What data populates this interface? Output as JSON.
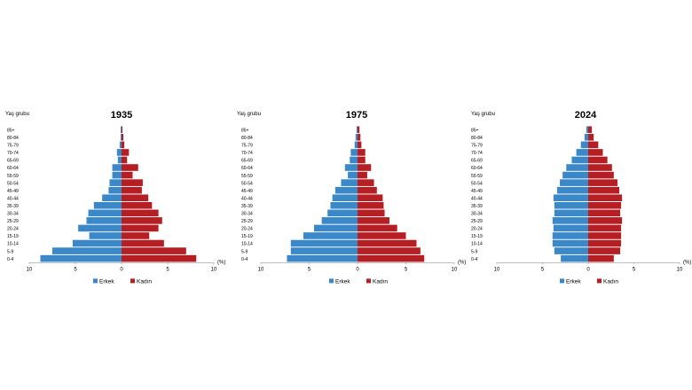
{
  "colors": {
    "male": "#3a88c8",
    "female": "#b51f24"
  },
  "chart_data": [
    {
      "type": "bar",
      "orientation": "horizontal",
      "subtype": "population-pyramid",
      "title": "1935",
      "ylabel": "Yaş grubu",
      "xlabel": "(%)",
      "xlim": [
        -10,
        10
      ],
      "xticks": [
        "10",
        "5",
        "0",
        "5",
        "10"
      ],
      "categories": [
        "0-4",
        "5-9",
        "10-14",
        "15-19",
        "20-24",
        "25-29",
        "30-34",
        "35-39",
        "40-44",
        "45-49",
        "50-54",
        "55-59",
        "60-64",
        "65-69",
        "70-74",
        "75-79",
        "80-84",
        "85+"
      ],
      "series": [
        {
          "name": "Erkek",
          "values": [
            8.8,
            7.5,
            5.3,
            3.5,
            4.7,
            3.8,
            3.6,
            3.0,
            2.1,
            1.4,
            1.3,
            1.0,
            1.0,
            0.4,
            0.5,
            0.2,
            0.1,
            0.1
          ]
        },
        {
          "name": "Kadın",
          "values": [
            8.1,
            7.0,
            4.6,
            3.0,
            4.0,
            4.4,
            4.0,
            3.3,
            2.9,
            2.2,
            2.3,
            1.2,
            1.8,
            0.6,
            0.8,
            0.3,
            0.2,
            0.1
          ]
        }
      ]
    },
    {
      "type": "bar",
      "orientation": "horizontal",
      "subtype": "population-pyramid",
      "title": "1975",
      "ylabel": "Yaş grubu",
      "xlabel": "(%)",
      "xlim": [
        -10,
        10
      ],
      "xticks": [
        "10",
        "5",
        "0",
        "5",
        "10"
      ],
      "categories": [
        "0-4",
        "5-9",
        "10-14",
        "15-19",
        "20-24",
        "25-29",
        "30-34",
        "35-39",
        "40-44",
        "45-49",
        "50-54",
        "55-59",
        "60-64",
        "65-69",
        "70-74",
        "75-79",
        "80-84",
        "85+"
      ],
      "series": [
        {
          "name": "Erkek",
          "values": [
            7.3,
            6.9,
            6.9,
            5.6,
            4.5,
            3.7,
            3.1,
            2.8,
            2.6,
            2.3,
            1.7,
            1.0,
            1.3,
            0.8,
            0.7,
            0.3,
            0.2,
            0.1
          ]
        },
        {
          "name": "Kadın",
          "values": [
            6.9,
            6.5,
            6.1,
            5.0,
            4.1,
            3.3,
            2.8,
            2.7,
            2.6,
            2.0,
            1.7,
            1.0,
            1.4,
            0.8,
            0.8,
            0.4,
            0.3,
            0.2
          ]
        }
      ]
    },
    {
      "type": "bar",
      "orientation": "horizontal",
      "subtype": "population-pyramid",
      "title": "2024",
      "ylabel": "Yaş grubu",
      "xlabel": "(%)",
      "xlim": [
        -10,
        10
      ],
      "xticks": [
        "10",
        "5",
        "0",
        "5",
        "10"
      ],
      "categories": [
        "0-4",
        "5-9",
        "10-14",
        "15-19",
        "20-24",
        "25-29",
        "30-34",
        "35-39",
        "40-44",
        "45-49",
        "50-54",
        "55-59",
        "60-64",
        "65-69",
        "70-74",
        "75-79",
        "80-84",
        "85+"
      ],
      "series": [
        {
          "name": "Erkek",
          "values": [
            3.0,
            3.7,
            3.9,
            3.9,
            3.8,
            3.9,
            3.7,
            3.7,
            3.8,
            3.4,
            3.1,
            2.8,
            2.4,
            1.8,
            1.3,
            0.8,
            0.4,
            0.2
          ]
        },
        {
          "name": "Kadın",
          "values": [
            2.8,
            3.5,
            3.6,
            3.6,
            3.6,
            3.7,
            3.5,
            3.6,
            3.7,
            3.4,
            3.2,
            2.8,
            2.6,
            2.1,
            1.6,
            1.1,
            0.6,
            0.4
          ]
        }
      ]
    }
  ]
}
